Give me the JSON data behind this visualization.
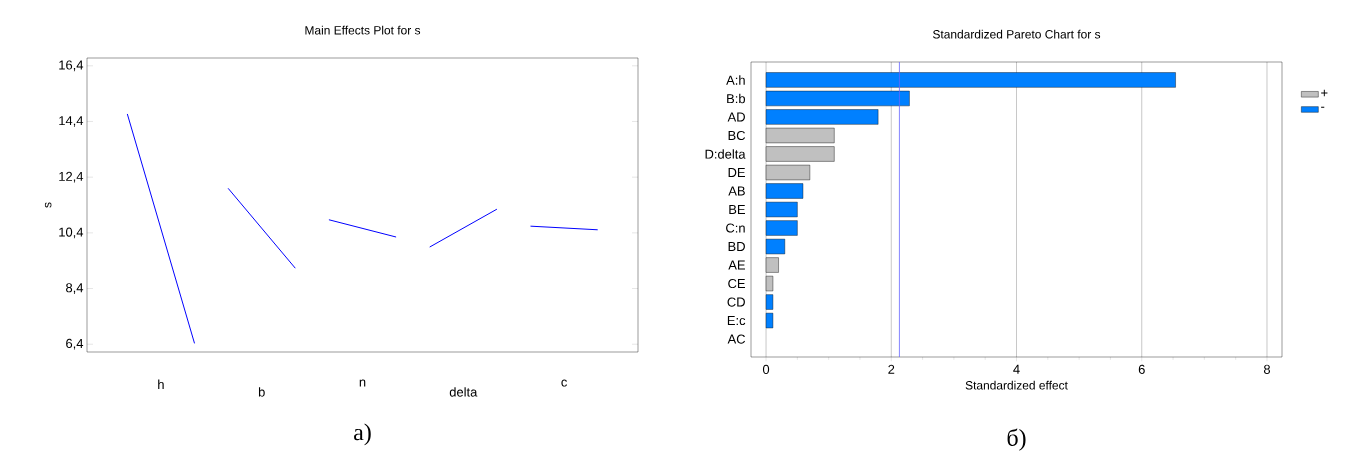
{
  "chart_data": [
    {
      "type": "line",
      "title": "Main Effects Plot for s",
      "ylabel": "s",
      "categories": [
        null,
        "h",
        null,
        null,
        "b",
        null,
        null,
        "n",
        null,
        null,
        "delta",
        null,
        null,
        "c",
        null
      ],
      "series": [
        {
          "color": "#0000ff",
          "values": [
            14.67,
            null,
            6.43,
            null,
            null,
            null,
            null,
            null,
            null,
            null,
            null,
            null,
            null,
            null,
            null
          ]
        },
        {
          "color": "#0000ff",
          "values": [
            null,
            null,
            null,
            12.0,
            null,
            9.13,
            null,
            null,
            null,
            null,
            null,
            null,
            null,
            null,
            null
          ]
        },
        {
          "color": "#0000ff",
          "values": [
            null,
            null,
            null,
            null,
            null,
            null,
            10.87,
            null,
            10.25,
            null,
            null,
            null,
            null,
            null,
            null
          ]
        },
        {
          "color": "#0000ff",
          "values": [
            null,
            null,
            null,
            null,
            null,
            null,
            null,
            null,
            null,
            9.89,
            null,
            11.25,
            null,
            null,
            null
          ]
        },
        {
          "color": "#0000ff",
          "values": [
            null,
            null,
            null,
            null,
            null,
            null,
            null,
            null,
            null,
            null,
            null,
            null,
            10.64,
            null,
            10.51
          ]
        }
      ],
      "ylim": [
        6.12,
        16.68
      ],
      "yticks": [
        {
          "value": 6.4,
          "label": "6,4"
        },
        {
          "value": 8.4,
          "label": "8,4"
        },
        {
          "value": 10.4,
          "label": "10,4"
        },
        {
          "value": 12.4,
          "label": "12,4"
        },
        {
          "value": 14.4,
          "label": "14,4"
        },
        {
          "value": 16.4,
          "label": "16,4"
        }
      ],
      "annotations": [
        "а)"
      ]
    },
    {
      "type": "bar",
      "orientation": "horizontal",
      "title": "Standardized Pareto Chart for s",
      "xlabel": "Standardized effect",
      "categories": [
        "A:h",
        "B:b",
        "AD",
        "BC",
        "D:delta",
        "DE",
        "AB",
        "BE",
        "C:n",
        "BD",
        "AE",
        "CE",
        "CD",
        "E:c",
        "AC"
      ],
      "series": [
        {
          "name": "+",
          "color": "#c0c0c0",
          "values": [
            null,
            null,
            null,
            1.09,
            1.09,
            0.7,
            null,
            null,
            null,
            null,
            0.2,
            0.11,
            null,
            null,
            null
          ]
        },
        {
          "name": "-",
          "color": "#0080ff",
          "values": [
            6.54,
            2.29,
            1.79,
            null,
            null,
            null,
            0.59,
            0.5,
            0.5,
            0.3,
            null,
            null,
            0.11,
            0.11,
            null
          ]
        }
      ],
      "xlim": [
        -0.24,
        8.24
      ],
      "xticks": [
        0,
        2,
        4,
        6,
        8
      ],
      "grid": "x",
      "legend": "right",
      "ref_lines": [
        {
          "axis": "x",
          "value": 2.13,
          "color": "#6666ff"
        }
      ],
      "annotations": [
        "б)"
      ]
    }
  ]
}
